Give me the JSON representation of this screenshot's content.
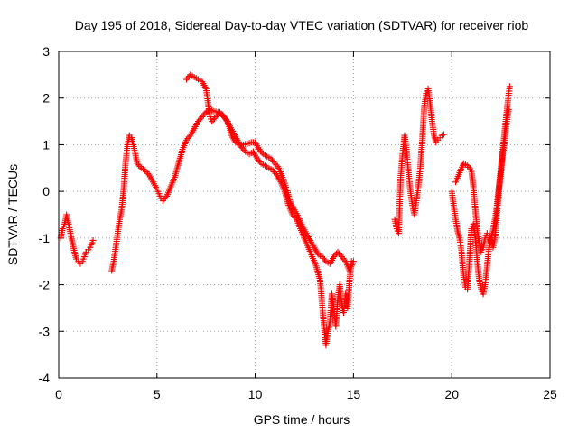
{
  "chart_data": {
    "type": "scatter",
    "title": "Day 195 of 2018, Sidereal Day-to-day VTEC variation (SDTVAR) for receiver riob",
    "xlabel": "GPS time / hours",
    "ylabel": "SDTVAR / TECUs",
    "xlim": [
      0,
      25
    ],
    "ylim": [
      -4,
      3
    ],
    "xticks": [
      0,
      5,
      10,
      15,
      20,
      25
    ],
    "yticks": [
      -4,
      -3,
      -2,
      -1,
      0,
      1,
      2,
      3
    ],
    "xtick_labels": [
      "0",
      "5",
      "10",
      "15",
      "20",
      "25"
    ],
    "ytick_labels": [
      "-4",
      "-3",
      "-2",
      "-1",
      "0",
      "1",
      "2",
      "3"
    ],
    "grid": true,
    "marker": "+",
    "color": "#ff0000",
    "series": [
      {
        "name": "SDTVAR",
        "segments": [
          [
            [
              0.1,
              -1.0
            ],
            [
              0.2,
              -0.8
            ],
            [
              0.3,
              -0.7
            ],
            [
              0.4,
              -0.5
            ],
            [
              0.5,
              -0.7
            ],
            [
              0.6,
              -0.9
            ],
            [
              0.7,
              -1.1
            ],
            [
              0.8,
              -1.3
            ],
            [
              0.9,
              -1.45
            ],
            [
              1.0,
              -1.5
            ],
            [
              1.1,
              -1.55
            ],
            [
              1.2,
              -1.5
            ],
            [
              1.3,
              -1.4
            ],
            [
              1.4,
              -1.3
            ],
            [
              1.5,
              -1.25
            ],
            [
              1.6,
              -1.2
            ],
            [
              1.7,
              -1.1
            ],
            [
              1.75,
              -1.05
            ]
          ],
          [
            [
              2.7,
              -1.7
            ],
            [
              2.8,
              -1.5
            ],
            [
              2.9,
              -1.2
            ],
            [
              3.0,
              -0.9
            ],
            [
              3.1,
              -0.6
            ],
            [
              3.2,
              -0.4
            ],
            [
              3.3,
              0.0
            ],
            [
              3.4,
              0.6
            ],
            [
              3.5,
              1.0
            ],
            [
              3.6,
              1.2
            ],
            [
              3.7,
              1.15
            ],
            [
              3.8,
              1.0
            ],
            [
              3.9,
              0.8
            ],
            [
              4.0,
              0.6
            ],
            [
              4.2,
              0.5
            ],
            [
              4.4,
              0.45
            ],
            [
              4.6,
              0.35
            ],
            [
              4.8,
              0.2
            ],
            [
              5.0,
              0.05
            ],
            [
              5.1,
              -0.05
            ],
            [
              5.2,
              -0.15
            ],
            [
              5.3,
              -0.2
            ],
            [
              5.5,
              -0.1
            ],
            [
              5.7,
              0.1
            ],
            [
              5.9,
              0.3
            ],
            [
              6.1,
              0.6
            ],
            [
              6.3,
              0.9
            ],
            [
              6.5,
              1.1
            ],
            [
              6.7,
              1.2
            ],
            [
              6.9,
              1.35
            ],
            [
              7.1,
              1.5
            ],
            [
              7.3,
              1.6
            ],
            [
              7.5,
              1.7
            ],
            [
              7.7,
              1.75
            ],
            [
              7.9,
              1.72
            ],
            [
              8.1,
              1.7
            ],
            [
              8.3,
              1.65
            ],
            [
              8.5,
              1.55
            ],
            [
              8.7,
              1.4
            ],
            [
              8.9,
              1.25
            ],
            [
              9.1,
              1.1
            ],
            [
              9.3,
              0.95
            ],
            [
              9.5,
              0.85
            ],
            [
              9.7,
              0.8
            ],
            [
              9.9,
              0.85
            ],
            [
              10.1,
              0.7
            ],
            [
              10.3,
              0.6
            ],
            [
              10.5,
              0.55
            ],
            [
              10.7,
              0.5
            ],
            [
              10.9,
              0.45
            ],
            [
              11.1,
              0.35
            ],
            [
              11.3,
              0.2
            ],
            [
              11.5,
              0.0
            ],
            [
              11.7,
              -0.3
            ],
            [
              11.9,
              -0.5
            ],
            [
              12.1,
              -0.6
            ],
            [
              12.3,
              -0.8
            ],
            [
              12.5,
              -1.0
            ],
            [
              12.7,
              -1.2
            ],
            [
              12.9,
              -1.4
            ],
            [
              13.1,
              -1.6
            ],
            [
              13.3,
              -1.9
            ],
            [
              13.4,
              -2.4
            ],
            [
              13.5,
              -2.9
            ],
            [
              13.6,
              -3.3
            ],
            [
              13.7,
              -3.0
            ],
            [
              13.8,
              -2.8
            ],
            [
              13.9,
              -2.2
            ],
            [
              14.0,
              -2.5
            ],
            [
              14.1,
              -2.9
            ],
            [
              14.2,
              -2.3
            ],
            [
              14.3,
              -2.0
            ],
            [
              14.4,
              -2.4
            ],
            [
              14.5,
              -2.6
            ],
            [
              14.6,
              -2.2
            ],
            [
              14.7,
              -2.5
            ],
            [
              14.8,
              -1.9
            ],
            [
              14.9,
              -1.5
            ]
          ],
          [
            [
              6.5,
              2.4
            ],
            [
              6.7,
              2.5
            ],
            [
              6.9,
              2.45
            ],
            [
              7.1,
              2.4
            ],
            [
              7.3,
              2.35
            ],
            [
              7.5,
              2.2
            ],
            [
              7.6,
              1.9
            ],
            [
              7.7,
              1.6
            ],
            [
              7.8,
              1.5
            ],
            [
              8.0,
              1.6
            ],
            [
              8.2,
              1.7
            ],
            [
              8.4,
              1.6
            ],
            [
              8.6,
              1.5
            ],
            [
              8.8,
              1.2
            ],
            [
              9.0,
              1.05
            ],
            [
              9.2,
              1.0
            ],
            [
              9.4,
              1.0
            ],
            [
              9.6,
              1.02
            ],
            [
              9.8,
              1.05
            ],
            [
              10.0,
              1.05
            ],
            [
              10.2,
              0.9
            ],
            [
              10.4,
              0.8
            ],
            [
              10.6,
              0.75
            ],
            [
              10.8,
              0.7
            ],
            [
              11.0,
              0.6
            ],
            [
              11.2,
              0.5
            ],
            [
              11.4,
              0.3
            ],
            [
              11.6,
              0.05
            ],
            [
              11.8,
              -0.25
            ],
            [
              12.0,
              -0.4
            ],
            [
              12.2,
              -0.55
            ],
            [
              12.4,
              -0.75
            ],
            [
              12.6,
              -0.9
            ],
            [
              12.8,
              -1.05
            ],
            [
              13.0,
              -1.2
            ],
            [
              13.2,
              -1.35
            ],
            [
              13.4,
              -1.4
            ],
            [
              13.6,
              -1.5
            ],
            [
              13.8,
              -1.55
            ],
            [
              14.0,
              -1.4
            ],
            [
              14.2,
              -1.3
            ],
            [
              14.4,
              -1.4
            ],
            [
              14.6,
              -1.5
            ],
            [
              14.8,
              -1.7
            ],
            [
              15.0,
              -1.5
            ]
          ],
          [
            [
              17.1,
              -0.6
            ],
            [
              17.2,
              -0.8
            ],
            [
              17.3,
              -0.9
            ],
            [
              17.35,
              -0.3
            ],
            [
              17.4,
              0.3
            ],
            [
              17.5,
              0.8
            ],
            [
              17.6,
              1.2
            ],
            [
              17.7,
              0.9
            ],
            [
              17.8,
              0.4
            ],
            [
              17.9,
              0.0
            ],
            [
              18.0,
              -0.3
            ],
            [
              18.1,
              -0.5
            ],
            [
              18.2,
              -0.2
            ],
            [
              18.3,
              0.1
            ],
            [
              18.4,
              0.5
            ],
            [
              18.5,
              1.1
            ],
            [
              18.6,
              1.8
            ],
            [
              18.7,
              2.1
            ],
            [
              18.8,
              2.2
            ],
            [
              18.9,
              1.9
            ],
            [
              19.0,
              1.5
            ],
            [
              19.1,
              1.2
            ],
            [
              19.2,
              1.05
            ],
            [
              19.3,
              1.1
            ],
            [
              19.4,
              1.15
            ],
            [
              19.5,
              1.2
            ],
            [
              19.6,
              1.22
            ]
          ],
          [
            [
              20.0,
              0.0
            ],
            [
              20.1,
              -0.3
            ],
            [
              20.2,
              -0.6
            ],
            [
              20.3,
              -0.85
            ],
            [
              20.4,
              -1.0
            ],
            [
              20.5,
              -1.3
            ],
            [
              20.6,
              -1.8
            ],
            [
              20.7,
              -2.05
            ],
            [
              20.8,
              -2.1
            ],
            [
              20.9,
              -1.5
            ],
            [
              21.0,
              -0.8
            ],
            [
              21.1,
              -0.7
            ],
            [
              21.2,
              -1.0
            ],
            [
              21.3,
              -1.5
            ],
            [
              21.4,
              -1.9
            ],
            [
              21.5,
              -2.1
            ],
            [
              21.6,
              -2.2
            ],
            [
              21.7,
              -2.0
            ],
            [
              21.8,
              -1.6
            ],
            [
              21.9,
              -1.2
            ],
            [
              22.0,
              -1.0
            ],
            [
              22.1,
              -0.85
            ],
            [
              22.2,
              -0.6
            ],
            [
              22.3,
              -0.3
            ],
            [
              22.4,
              0.1
            ],
            [
              22.5,
              0.5
            ],
            [
              22.6,
              0.9
            ],
            [
              22.7,
              1.3
            ],
            [
              22.8,
              1.7
            ],
            [
              22.9,
              2.1
            ],
            [
              22.95,
              2.25
            ]
          ],
          [
            [
              20.2,
              0.2
            ],
            [
              20.4,
              0.4
            ],
            [
              20.6,
              0.6
            ],
            [
              20.8,
              0.55
            ],
            [
              21.0,
              0.45
            ],
            [
              21.1,
              0.1
            ],
            [
              21.2,
              -0.4
            ],
            [
              21.3,
              -0.8
            ],
            [
              21.4,
              -1.1
            ],
            [
              21.5,
              -1.3
            ],
            [
              21.6,
              -1.2
            ],
            [
              21.7,
              -1.0
            ],
            [
              21.8,
              -0.9
            ],
            [
              21.9,
              -0.95
            ],
            [
              22.0,
              -1.1
            ],
            [
              22.1,
              -1.2
            ],
            [
              22.2,
              -1.0
            ],
            [
              22.3,
              -0.5
            ],
            [
              22.4,
              0.0
            ],
            [
              22.5,
              0.4
            ],
            [
              22.6,
              0.8
            ],
            [
              22.7,
              1.1
            ],
            [
              22.8,
              1.5
            ],
            [
              22.9,
              1.75
            ]
          ]
        ]
      }
    ]
  }
}
